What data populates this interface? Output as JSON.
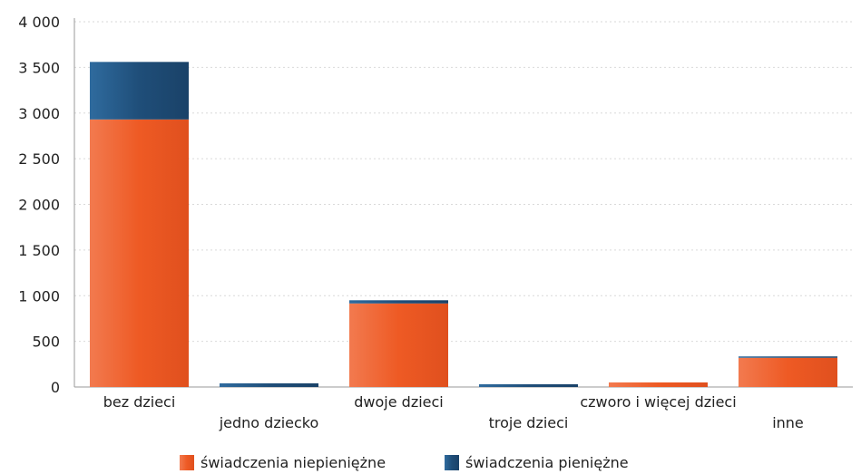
{
  "chart_data": {
    "type": "bar",
    "stacked": true,
    "categories": [
      "bez dzieci",
      "jedno dziecko",
      "dwoje dzieci",
      "troje dzieci",
      "czworo i więcej dzieci",
      "inne"
    ],
    "series": [
      {
        "name": "świadczenia niepieniężne",
        "color": "#ee5a24",
        "values": [
          2930,
          0,
          915,
          0,
          50,
          320
        ]
      },
      {
        "name": "świadczenia pieniężne",
        "color": "#1f4e79",
        "values": [
          630,
          40,
          35,
          30,
          0,
          15
        ]
      }
    ],
    "yticks": [
      "0",
      "500",
      "1 000",
      "1 500",
      "2 000",
      "2 500",
      "3 000",
      "3 500",
      "4 000"
    ],
    "ylim": [
      0,
      4000
    ],
    "grid": true,
    "legend_position": "bottom"
  }
}
